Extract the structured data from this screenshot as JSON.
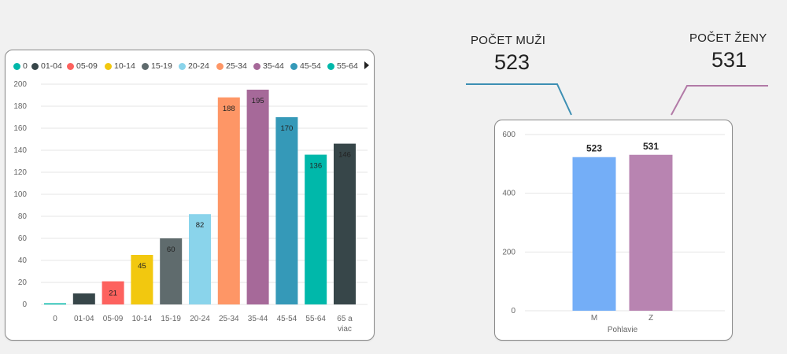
{
  "age_chart": {
    "legend_next_icon": "triangle-right-icon",
    "chart_data": {
      "type": "bar",
      "title": "",
      "xlabel": "",
      "ylabel": "",
      "categories": [
        "0",
        "01-04",
        "05-09",
        "10-14",
        "15-19",
        "20-24",
        "25-34",
        "35-44",
        "45-54",
        "55-64",
        "65 a viac"
      ],
      "values": [
        1,
        10,
        21,
        45,
        60,
        82,
        188,
        195,
        170,
        136,
        146
      ],
      "data_labels": [
        "",
        "",
        "21",
        "45",
        "60",
        "82",
        "188",
        "195",
        "170",
        "136",
        "146"
      ],
      "colors": [
        "#01b8aa",
        "#374649",
        "#fd625e",
        "#f2c80f",
        "#5f6b6d",
        "#8ad4eb",
        "#fe9666",
        "#a66999",
        "#3599b8",
        "#00b8aa",
        "#374649"
      ],
      "legend": [
        "0",
        "01-04",
        "05-09",
        "10-14",
        "15-19",
        "20-24",
        "25-34",
        "35-44",
        "45-54",
        "55-64"
      ],
      "y_ticks": [
        "0",
        "20",
        "40",
        "60",
        "80",
        "100",
        "120",
        "140",
        "160",
        "180",
        "200"
      ],
      "ylim": [
        0,
        200
      ],
      "grid": true,
      "legend_position": "top"
    }
  },
  "gender_stats": {
    "men_label": "POČET MUŽI",
    "men_value": "523",
    "women_label": "POČET ŽENY",
    "women_value": "531"
  },
  "gender_chart": {
    "chart_data": {
      "type": "bar",
      "title": "",
      "xlabel": "Pohlavie",
      "ylabel": "",
      "categories": [
        "M",
        "Z"
      ],
      "values": [
        523,
        531
      ],
      "data_labels": [
        "523",
        "531"
      ],
      "colors": [
        "#74aef7",
        "#b884b1"
      ],
      "y_ticks": [
        "0",
        "200",
        "400",
        "600"
      ],
      "ylim": [
        0,
        600
      ],
      "grid": true
    }
  },
  "connectors": {
    "men_color": "#3d8fb3",
    "women_color": "#b27aa7"
  }
}
